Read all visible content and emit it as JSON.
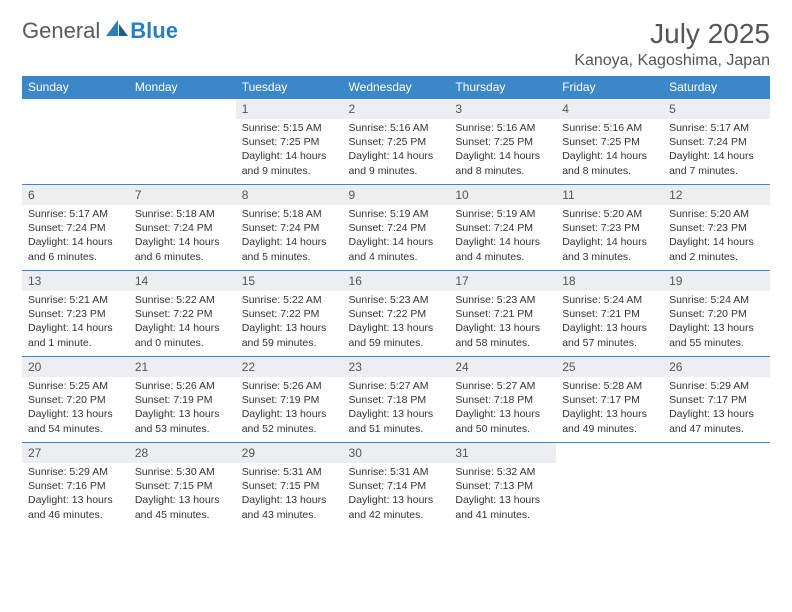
{
  "logo": {
    "general": "General",
    "blue": "Blue"
  },
  "title": "July 2025",
  "location": "Kanoya, Kagoshima, Japan",
  "colors": {
    "header_bg": "#3b87c8",
    "header_text": "#ffffff",
    "daynum_bg": "#eceeef",
    "border": "#3b87c8",
    "title_color": "#555555",
    "body_text": "#333333",
    "logo_gray": "#5a5a5a",
    "logo_blue": "#2a7fbf"
  },
  "day_headers": [
    "Sunday",
    "Monday",
    "Tuesday",
    "Wednesday",
    "Thursday",
    "Friday",
    "Saturday"
  ],
  "weeks": [
    [
      null,
      null,
      {
        "n": "1",
        "sunrise": "Sunrise: 5:15 AM",
        "sunset": "Sunset: 7:25 PM",
        "dl": "Daylight: 14 hours and 9 minutes."
      },
      {
        "n": "2",
        "sunrise": "Sunrise: 5:16 AM",
        "sunset": "Sunset: 7:25 PM",
        "dl": "Daylight: 14 hours and 9 minutes."
      },
      {
        "n": "3",
        "sunrise": "Sunrise: 5:16 AM",
        "sunset": "Sunset: 7:25 PM",
        "dl": "Daylight: 14 hours and 8 minutes."
      },
      {
        "n": "4",
        "sunrise": "Sunrise: 5:16 AM",
        "sunset": "Sunset: 7:25 PM",
        "dl": "Daylight: 14 hours and 8 minutes."
      },
      {
        "n": "5",
        "sunrise": "Sunrise: 5:17 AM",
        "sunset": "Sunset: 7:24 PM",
        "dl": "Daylight: 14 hours and 7 minutes."
      }
    ],
    [
      {
        "n": "6",
        "sunrise": "Sunrise: 5:17 AM",
        "sunset": "Sunset: 7:24 PM",
        "dl": "Daylight: 14 hours and 6 minutes."
      },
      {
        "n": "7",
        "sunrise": "Sunrise: 5:18 AM",
        "sunset": "Sunset: 7:24 PM",
        "dl": "Daylight: 14 hours and 6 minutes."
      },
      {
        "n": "8",
        "sunrise": "Sunrise: 5:18 AM",
        "sunset": "Sunset: 7:24 PM",
        "dl": "Daylight: 14 hours and 5 minutes."
      },
      {
        "n": "9",
        "sunrise": "Sunrise: 5:19 AM",
        "sunset": "Sunset: 7:24 PM",
        "dl": "Daylight: 14 hours and 4 minutes."
      },
      {
        "n": "10",
        "sunrise": "Sunrise: 5:19 AM",
        "sunset": "Sunset: 7:24 PM",
        "dl": "Daylight: 14 hours and 4 minutes."
      },
      {
        "n": "11",
        "sunrise": "Sunrise: 5:20 AM",
        "sunset": "Sunset: 7:23 PM",
        "dl": "Daylight: 14 hours and 3 minutes."
      },
      {
        "n": "12",
        "sunrise": "Sunrise: 5:20 AM",
        "sunset": "Sunset: 7:23 PM",
        "dl": "Daylight: 14 hours and 2 minutes."
      }
    ],
    [
      {
        "n": "13",
        "sunrise": "Sunrise: 5:21 AM",
        "sunset": "Sunset: 7:23 PM",
        "dl": "Daylight: 14 hours and 1 minute."
      },
      {
        "n": "14",
        "sunrise": "Sunrise: 5:22 AM",
        "sunset": "Sunset: 7:22 PM",
        "dl": "Daylight: 14 hours and 0 minutes."
      },
      {
        "n": "15",
        "sunrise": "Sunrise: 5:22 AM",
        "sunset": "Sunset: 7:22 PM",
        "dl": "Daylight: 13 hours and 59 minutes."
      },
      {
        "n": "16",
        "sunrise": "Sunrise: 5:23 AM",
        "sunset": "Sunset: 7:22 PM",
        "dl": "Daylight: 13 hours and 59 minutes."
      },
      {
        "n": "17",
        "sunrise": "Sunrise: 5:23 AM",
        "sunset": "Sunset: 7:21 PM",
        "dl": "Daylight: 13 hours and 58 minutes."
      },
      {
        "n": "18",
        "sunrise": "Sunrise: 5:24 AM",
        "sunset": "Sunset: 7:21 PM",
        "dl": "Daylight: 13 hours and 57 minutes."
      },
      {
        "n": "19",
        "sunrise": "Sunrise: 5:24 AM",
        "sunset": "Sunset: 7:20 PM",
        "dl": "Daylight: 13 hours and 55 minutes."
      }
    ],
    [
      {
        "n": "20",
        "sunrise": "Sunrise: 5:25 AM",
        "sunset": "Sunset: 7:20 PM",
        "dl": "Daylight: 13 hours and 54 minutes."
      },
      {
        "n": "21",
        "sunrise": "Sunrise: 5:26 AM",
        "sunset": "Sunset: 7:19 PM",
        "dl": "Daylight: 13 hours and 53 minutes."
      },
      {
        "n": "22",
        "sunrise": "Sunrise: 5:26 AM",
        "sunset": "Sunset: 7:19 PM",
        "dl": "Daylight: 13 hours and 52 minutes."
      },
      {
        "n": "23",
        "sunrise": "Sunrise: 5:27 AM",
        "sunset": "Sunset: 7:18 PM",
        "dl": "Daylight: 13 hours and 51 minutes."
      },
      {
        "n": "24",
        "sunrise": "Sunrise: 5:27 AM",
        "sunset": "Sunset: 7:18 PM",
        "dl": "Daylight: 13 hours and 50 minutes."
      },
      {
        "n": "25",
        "sunrise": "Sunrise: 5:28 AM",
        "sunset": "Sunset: 7:17 PM",
        "dl": "Daylight: 13 hours and 49 minutes."
      },
      {
        "n": "26",
        "sunrise": "Sunrise: 5:29 AM",
        "sunset": "Sunset: 7:17 PM",
        "dl": "Daylight: 13 hours and 47 minutes."
      }
    ],
    [
      {
        "n": "27",
        "sunrise": "Sunrise: 5:29 AM",
        "sunset": "Sunset: 7:16 PM",
        "dl": "Daylight: 13 hours and 46 minutes."
      },
      {
        "n": "28",
        "sunrise": "Sunrise: 5:30 AM",
        "sunset": "Sunset: 7:15 PM",
        "dl": "Daylight: 13 hours and 45 minutes."
      },
      {
        "n": "29",
        "sunrise": "Sunrise: 5:31 AM",
        "sunset": "Sunset: 7:15 PM",
        "dl": "Daylight: 13 hours and 43 minutes."
      },
      {
        "n": "30",
        "sunrise": "Sunrise: 5:31 AM",
        "sunset": "Sunset: 7:14 PM",
        "dl": "Daylight: 13 hours and 42 minutes."
      },
      {
        "n": "31",
        "sunrise": "Sunrise: 5:32 AM",
        "sunset": "Sunset: 7:13 PM",
        "dl": "Daylight: 13 hours and 41 minutes."
      },
      null,
      null
    ]
  ]
}
